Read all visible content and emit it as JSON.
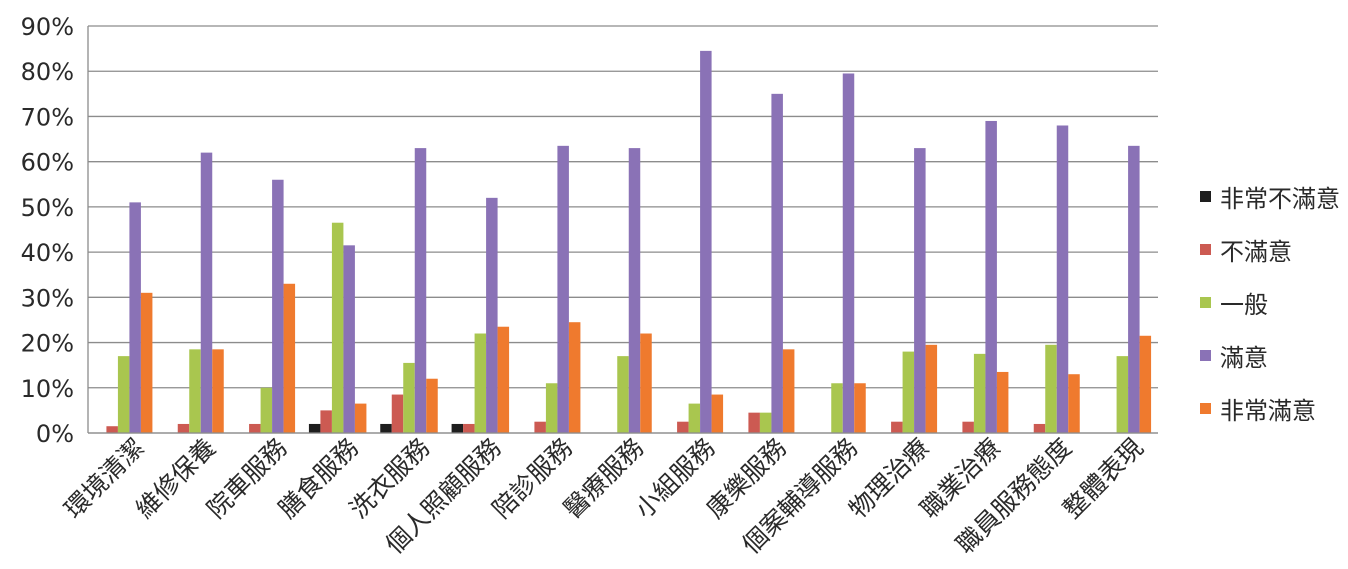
{
  "chart_data": {
    "type": "bar",
    "categories": [
      "環境清潔",
      "維修保養",
      "院車服務",
      "膳食服務",
      "洗衣服務",
      "個人照顧服務",
      "陪診服務",
      "醫療服務",
      "小組服務",
      "康樂服務",
      "個案輔導服務",
      "物理治療",
      "職業治療",
      "職員服務態度",
      "整體表現"
    ],
    "series": [
      {
        "name": "非常不滿意",
        "color": "#1e1e1e",
        "values": [
          0,
          0,
          0,
          2,
          2,
          2,
          0,
          0,
          0,
          0,
          0,
          0,
          0,
          0,
          0
        ]
      },
      {
        "name": "不滿意",
        "color": "#cc5a52",
        "values": [
          1.5,
          2,
          2,
          5,
          8.5,
          2,
          2.5,
          0,
          2.5,
          4.5,
          0,
          2.5,
          2.5,
          2,
          0
        ]
      },
      {
        "name": "一般",
        "color": "#a9c64f",
        "values": [
          17,
          18.5,
          10,
          46.5,
          15.5,
          22,
          11,
          17,
          6.5,
          4.5,
          11,
          18,
          17.5,
          19.5,
          17
        ]
      },
      {
        "name": "滿意",
        "color": "#8a72b6",
        "values": [
          51,
          62,
          56,
          41.5,
          63,
          52,
          63.5,
          63,
          84.5,
          75,
          79.5,
          63,
          69,
          68,
          63.5
        ]
      },
      {
        "name": "非常滿意",
        "color": "#ef7a2e",
        "values": [
          31,
          18.5,
          33,
          6.5,
          12,
          23.5,
          24.5,
          22,
          8.5,
          18.5,
          11,
          19.5,
          13.5,
          13,
          21.5
        ]
      }
    ],
    "yticks": [
      "0%",
      "10%",
      "20%",
      "30%",
      "40%",
      "50%",
      "60%",
      "70%",
      "80%",
      "90%"
    ],
    "ylim": [
      0,
      90
    ],
    "grid": true,
    "legend_position": "right",
    "title": "",
    "xlabel": "",
    "ylabel": ""
  }
}
